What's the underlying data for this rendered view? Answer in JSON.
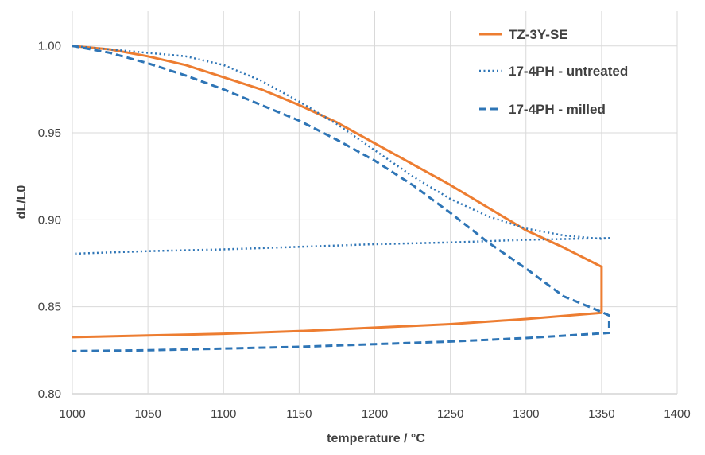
{
  "chart_data": {
    "type": "line",
    "title": "",
    "xlabel": "temperature / °C",
    "ylabel": "dL/L0",
    "xlim": [
      1000,
      1400
    ],
    "ylim": [
      0.8,
      1.02
    ],
    "xticks": [
      1000,
      1050,
      1100,
      1150,
      1200,
      1250,
      1300,
      1350,
      1400
    ],
    "yticks": [
      0.8,
      0.85,
      0.9,
      0.95,
      1.0
    ],
    "xtick_labels": [
      "1000",
      "1050",
      "1100",
      "1150",
      "1200",
      "1250",
      "1300",
      "1350",
      "1400"
    ],
    "ytick_labels": [
      "0.80",
      "0.85",
      "0.90",
      "0.95",
      "1.00"
    ],
    "grid": "major-both",
    "legend_position": "top-right",
    "series": [
      {
        "name": "TZ-3Y-SE",
        "color": "#ED7D31",
        "style": "solid",
        "x": [
          1000,
          1025,
          1050,
          1075,
          1100,
          1125,
          1150,
          1175,
          1200,
          1225,
          1250,
          1275,
          1300,
          1325,
          1350,
          1350,
          1300,
          1250,
          1200,
          1150,
          1100,
          1050,
          1000
        ],
        "y": [
          1.0,
          0.998,
          0.994,
          0.989,
          0.982,
          0.975,
          0.966,
          0.956,
          0.944,
          0.932,
          0.92,
          0.907,
          0.894,
          0.884,
          0.873,
          0.8465,
          0.843,
          0.84,
          0.838,
          0.836,
          0.8345,
          0.8335,
          0.8325
        ]
      },
      {
        "name": "17-4PH - untreated",
        "color": "#2E75B6",
        "style": "dotted",
        "x": [
          1000,
          1025,
          1050,
          1075,
          1100,
          1125,
          1150,
          1175,
          1200,
          1225,
          1250,
          1275,
          1300,
          1325,
          1350,
          1355,
          1300,
          1250,
          1200,
          1150,
          1100,
          1050,
          1000
        ],
        "y": [
          1.0,
          0.998,
          0.996,
          0.994,
          0.989,
          0.98,
          0.968,
          0.955,
          0.94,
          0.925,
          0.912,
          0.902,
          0.895,
          0.891,
          0.889,
          0.8895,
          0.8885,
          0.887,
          0.886,
          0.8845,
          0.883,
          0.882,
          0.8805
        ]
      },
      {
        "name": "17-4PH - milled",
        "color": "#2E75B6",
        "style": "dashed",
        "x": [
          1000,
          1025,
          1050,
          1075,
          1100,
          1125,
          1150,
          1175,
          1200,
          1225,
          1250,
          1275,
          1300,
          1325,
          1350,
          1355,
          1355,
          1300,
          1250,
          1200,
          1150,
          1100,
          1050,
          1000
        ],
        "y": [
          1.0,
          0.996,
          0.99,
          0.983,
          0.975,
          0.966,
          0.957,
          0.946,
          0.934,
          0.92,
          0.904,
          0.887,
          0.872,
          0.856,
          0.847,
          0.845,
          0.835,
          0.832,
          0.83,
          0.8285,
          0.827,
          0.826,
          0.825,
          0.8245
        ]
      }
    ]
  }
}
